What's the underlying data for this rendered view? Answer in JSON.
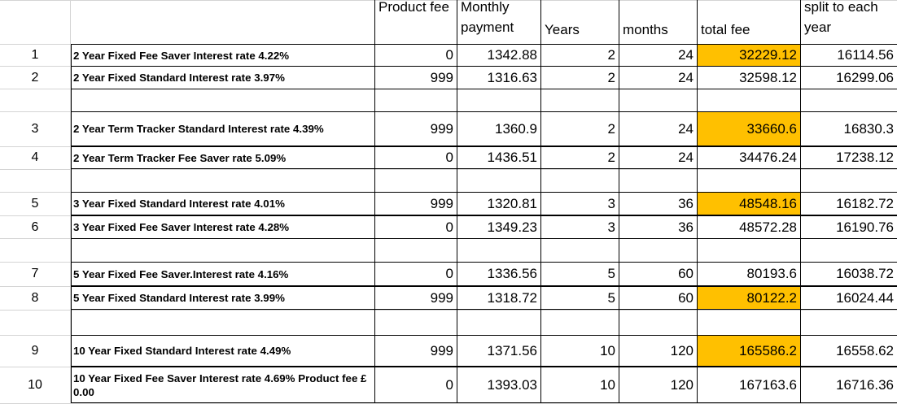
{
  "headers": {
    "product_fee": "Product fee",
    "monthly_payment": "Monthly payment",
    "years": "Years",
    "months": "months",
    "total_fee": "total fee",
    "split": "split to each year"
  },
  "rows": [
    {
      "num": "1",
      "desc": "2 Year Fixed Fee Saver Interest rate 4.22%",
      "fee": "0",
      "monthly": "1342.88",
      "years": "2",
      "months": "24",
      "total": "32229.12",
      "split": "16114.56",
      "highlight": true
    },
    {
      "num": "2",
      "desc": "2 Year Fixed Standard Interest rate 3.97%",
      "fee": "999",
      "monthly": "1316.63",
      "years": "2",
      "months": "24",
      "total": "32598.12",
      "split": "16299.06",
      "highlight": false
    },
    {
      "num": "3",
      "desc": "2 Year Term Tracker Standard Interest rate 4.39%",
      "fee": "999",
      "monthly": "1360.9",
      "years": "2",
      "months": "24",
      "total": "33660.6",
      "split": "16830.3",
      "highlight": true
    },
    {
      "num": "4",
      "desc": "2 Year Term Tracker Fee Saver rate 5.09%",
      "fee": "0",
      "monthly": "1436.51",
      "years": "2",
      "months": "24",
      "total": "34476.24",
      "split": "17238.12",
      "highlight": false
    },
    {
      "num": "5",
      "desc": "3 Year Fixed Standard Interest rate 4.01%",
      "fee": "999",
      "monthly": "1320.81",
      "years": "3",
      "months": "36",
      "total": "48548.16",
      "split": "16182.72",
      "highlight": true
    },
    {
      "num": "6",
      "desc": "3 Year Fixed Fee Saver Interest rate 4.28%",
      "fee": "0",
      "monthly": "1349.23",
      "years": "3",
      "months": "36",
      "total": "48572.28",
      "split": "16190.76",
      "highlight": false
    },
    {
      "num": "7",
      "desc": "5 Year Fixed Fee Saver.Interest rate 4.16%",
      "fee": "0",
      "monthly": "1336.56",
      "years": "5",
      "months": "60",
      "total": "80193.6",
      "split": "16038.72",
      "highlight": false
    },
    {
      "num": "8",
      "desc": "5 Year Fixed Standard Interest rate 3.99%",
      "fee": "999",
      "monthly": "1318.72",
      "years": "5",
      "months": "60",
      "total": "80122.2",
      "split": "16024.44",
      "highlight": true
    },
    {
      "num": "9",
      "desc": "10 Year Fixed Standard Interest rate 4.49%",
      "fee": "999",
      "monthly": "1371.56",
      "years": "10",
      "months": "120",
      "total": "165586.2",
      "split": "16558.62",
      "highlight": true
    },
    {
      "num": "10",
      "desc": "10 Year Fixed Fee Saver Interest rate 4.69% Product fee £ 0.00",
      "fee": "0",
      "monthly": "1393.03",
      "years": "10",
      "months": "120",
      "total": "167163.6",
      "split": "16716.36",
      "highlight": false
    }
  ],
  "colors": {
    "highlight": "#ffc000",
    "gridline": "#d4d4d4",
    "border": "#000000"
  }
}
